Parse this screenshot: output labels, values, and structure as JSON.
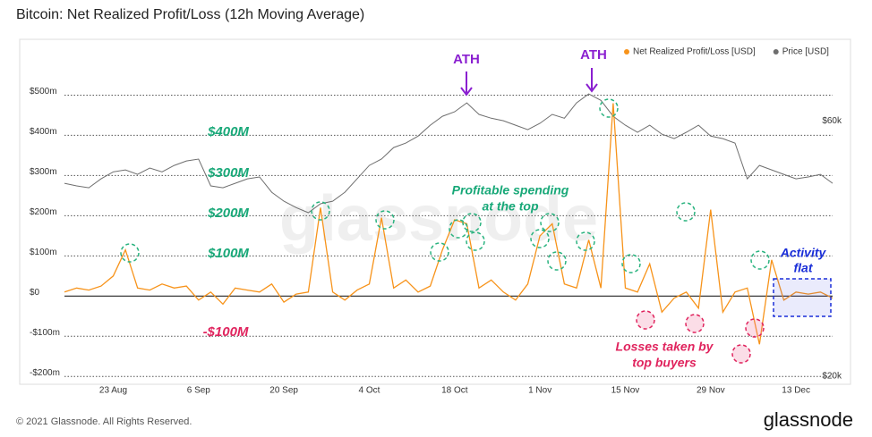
{
  "chart_data": {
    "type": "line",
    "title": "Bitcoin: Net Realized Profit/Loss (12h Moving Average)",
    "footer": "© 2021 Glassnode. All Rights Reserved.",
    "logo": "glassnode",
    "watermark": "glassnode",
    "categories": [
      null,
      null,
      null,
      null,
      "23 Aug",
      null,
      null,
      null,
      null,
      null,
      null,
      "6 Sep",
      null,
      null,
      null,
      null,
      null,
      null,
      "20 Sep",
      null,
      null,
      null,
      null,
      null,
      null,
      "4 Oct",
      null,
      null,
      null,
      null,
      null,
      null,
      "18 Oct",
      null,
      null,
      null,
      null,
      null,
      null,
      "1 Nov",
      null,
      null,
      null,
      null,
      null,
      null,
      "15 Nov",
      null,
      null,
      null,
      null,
      null,
      null,
      "29 Nov",
      null,
      null,
      null,
      null,
      null,
      null,
      "13 Dec",
      null,
      null,
      null
    ],
    "ylim": [
      -215,
      630
    ],
    "yticks": [
      {
        "value": -200,
        "label": "-$200m"
      },
      {
        "value": -100,
        "label": "-$100m"
      },
      {
        "value": 0,
        "label": "$0"
      },
      {
        "value": 100,
        "label": "$100m"
      },
      {
        "value": 200,
        "label": "$200m"
      },
      {
        "value": 300,
        "label": "$300m"
      },
      {
        "value": 400,
        "label": "$400m"
      },
      {
        "value": 500,
        "label": "$500m"
      }
    ],
    "y2lim": [
      19,
      72.2
    ],
    "y2ticks": [
      {
        "value": 20,
        "label": "$20k"
      },
      {
        "value": 60,
        "label": "$60k"
      }
    ],
    "grid": true,
    "legend": "top-right",
    "series": [
      {
        "name": "Price [USD]",
        "color": "#6e6e6e",
        "axis": "y2",
        "values": [
          50.2,
          49.8,
          49.5,
          50.9,
          52.0,
          52.3,
          51.6,
          52.6,
          52.0,
          53.0,
          53.7,
          54.0,
          49.8,
          49.5,
          50.2,
          50.9,
          51.2,
          48.8,
          47.4,
          46.4,
          45.6,
          47.0,
          47.4,
          48.8,
          50.9,
          53.0,
          54.0,
          55.8,
          56.5,
          57.6,
          59.3,
          60.7,
          61.4,
          62.8,
          61.0,
          60.4,
          60.0,
          59.3,
          58.6,
          59.6,
          61.0,
          60.4,
          62.8,
          64.2,
          63.2,
          60.7,
          59.3,
          58.2,
          59.3,
          57.9,
          57.2,
          58.2,
          59.3,
          57.6,
          57.2,
          56.5,
          50.9,
          53.0,
          52.3,
          51.6,
          50.9,
          51.2,
          51.6,
          50.2
        ]
      },
      {
        "name": "Net Realized Profit/Loss [USD]",
        "color": "#f7931a",
        "values": [
          10,
          20,
          15,
          25,
          50,
          115,
          20,
          15,
          30,
          20,
          25,
          -10,
          10,
          -20,
          20,
          15,
          10,
          30,
          -15,
          5,
          10,
          220,
          10,
          -10,
          15,
          30,
          195,
          20,
          40,
          10,
          25,
          115,
          190,
          180,
          20,
          40,
          10,
          -10,
          30,
          150,
          180,
          30,
          20,
          140,
          20,
          480,
          20,
          10,
          80,
          -40,
          -5,
          10,
          -30,
          215,
          -40,
          10,
          20,
          -120,
          90,
          -10,
          10,
          5,
          10,
          -5
        ]
      }
    ],
    "annotations": {
      "ath_1": "ATH",
      "ath_2": "ATH",
      "level_400": "$400M",
      "level_300": "$300M",
      "level_200": "$200M",
      "level_100": "$100M",
      "level_neg100": "-$100M",
      "profitable": [
        "Profitable spending",
        "at the top"
      ],
      "losses": [
        "Losses taken by",
        "top buyers"
      ],
      "flat": [
        "Activity",
        "flat"
      ]
    }
  }
}
